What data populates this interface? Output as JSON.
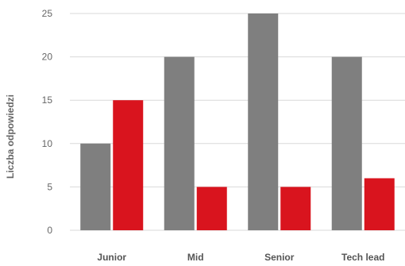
{
  "chart_data": {
    "type": "bar",
    "title": "",
    "xlabel": "",
    "ylabel": "Liczba odpowiedzi",
    "categories": [
      "Junior",
      "Mid",
      "Senior",
      "Tech lead"
    ],
    "series": [
      {
        "color": "#7f7f7f",
        "values": [
          10,
          20,
          25,
          20
        ]
      },
      {
        "color": "#d9141e",
        "values": [
          15,
          5,
          5,
          6
        ]
      }
    ],
    "yticks": [
      0,
      5,
      10,
      15,
      20,
      25
    ],
    "ylim": [
      0,
      25
    ],
    "grid": true,
    "legend": "none"
  }
}
